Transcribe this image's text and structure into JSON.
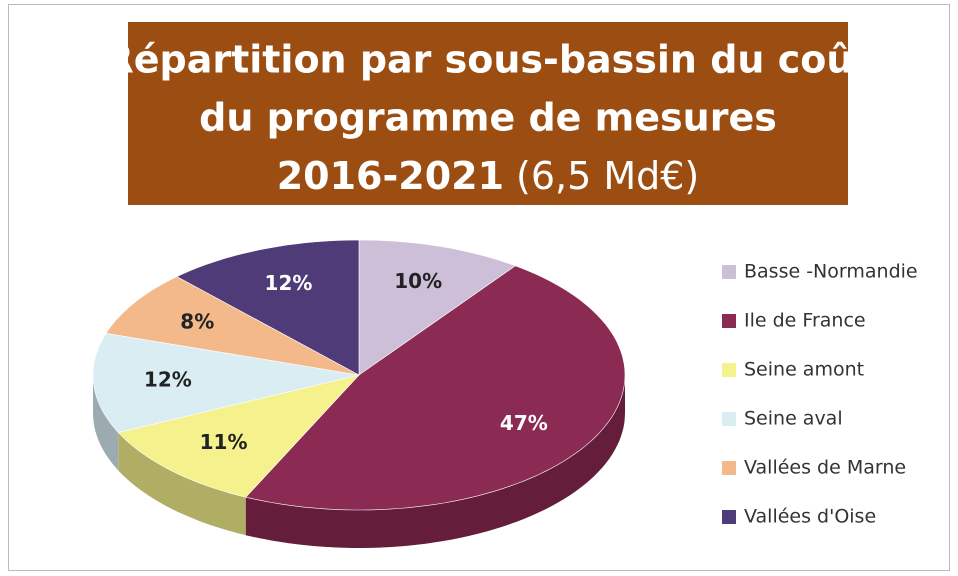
{
  "chart_data": {
    "type": "pie",
    "title_lines": [
      "Répartition par sous-bassin du coût",
      "du programme de mesures",
      "2016-2021"
    ],
    "title_suffix": "(6,5 Md€)",
    "categories": [
      "Basse -Normandie",
      "Ile de France",
      "Seine amont",
      "Seine aval",
      "Vallées de Marne",
      "Vallées d'Oise"
    ],
    "values": [
      10,
      47,
      11,
      12,
      8,
      12
    ],
    "value_labels": [
      "10%",
      "47%",
      "11%",
      "12%",
      "8%",
      "12%"
    ],
    "colors": [
      "#cdbfd8",
      "#8b2a52",
      "#f5f18c",
      "#d9edf3",
      "#f3b98b",
      "#4f3b77"
    ],
    "legend": "right"
  }
}
